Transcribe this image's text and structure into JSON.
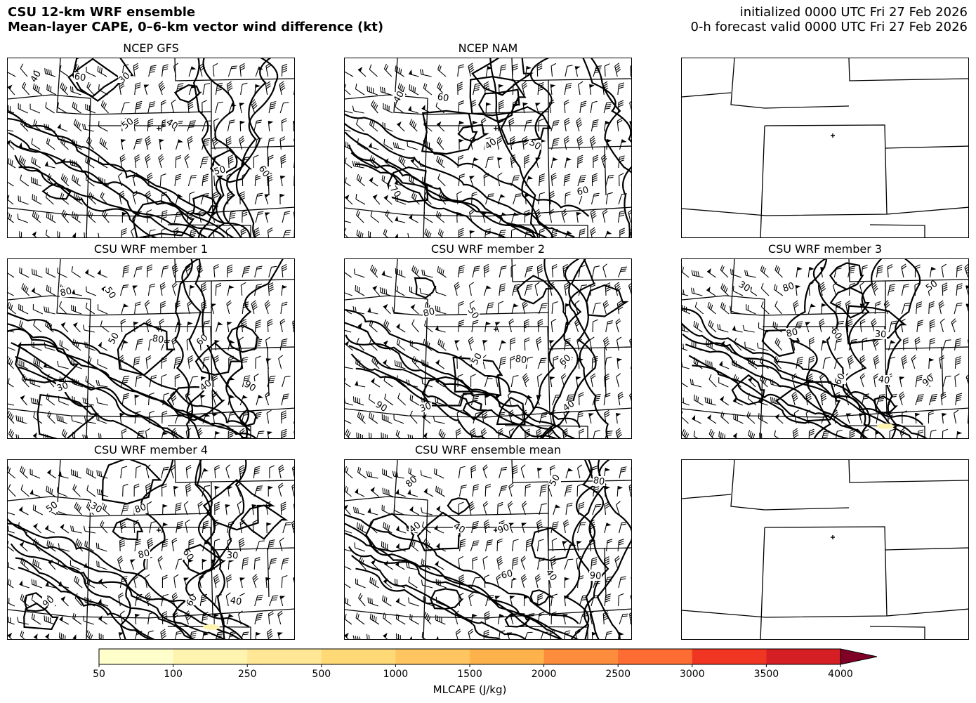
{
  "header": {
    "title_line1": "CSU 12-km WRF ensemble",
    "title_line2": "Mean-layer CAPE, 0–6-km vector wind difference (kt)",
    "init_line": "initialized 0000 UTC Fri 27 Feb 2026",
    "valid_line": "0-h forecast valid 0000 UTC Fri 27 Feb 2026"
  },
  "panels": [
    {
      "title": "NCEP GFS",
      "has_data": true,
      "contour_labels": [
        "40",
        "50",
        "50",
        "60",
        "40",
        "60",
        "30"
      ]
    },
    {
      "title": "NCEP NAM",
      "has_data": true,
      "contour_labels": [
        "40",
        "40",
        "60",
        "60",
        "50",
        "70"
      ]
    },
    {
      "title": "",
      "has_data": false,
      "contour_labels": []
    },
    {
      "title": "CSU WRF member 1",
      "has_data": true,
      "contour_labels": [
        "50",
        "40",
        "80",
        "80",
        "90",
        "50",
        "60",
        "30"
      ]
    },
    {
      "title": "CSU WRF member 2",
      "has_data": true,
      "contour_labels": [
        "50",
        "40",
        "80",
        "80",
        "90",
        "50",
        "60",
        "30"
      ]
    },
    {
      "title": "CSU WRF member 3",
      "has_data": true,
      "contour_labels": [
        "60",
        "50",
        "80",
        "40",
        "30",
        "60",
        "90",
        "80",
        "30"
      ]
    },
    {
      "title": "CSU WRF member 4",
      "has_data": true,
      "contour_labels": [
        "60",
        "50",
        "80",
        "40",
        "30",
        "60",
        "90",
        "80",
        "30"
      ]
    },
    {
      "title": "CSU WRF ensemble mean",
      "has_data": true,
      "contour_labels": [
        "50",
        "40",
        "60",
        "80",
        "40",
        "40",
        "80",
        "90",
        "90"
      ]
    },
    {
      "title": "",
      "has_data": false,
      "contour_labels": []
    }
  ],
  "colorbar": {
    "title": "MLCAPE (J/kg)",
    "levels": [
      "50",
      "100",
      "250",
      "500",
      "1000",
      "1500",
      "2000",
      "2500",
      "3000",
      "3500",
      "4000"
    ],
    "colors": [
      "#ffffcc",
      "#fff3b0",
      "#ffe795",
      "#fed976",
      "#fec560",
      "#feb24c",
      "#fd8d3c",
      "#fc6c33",
      "#f03523",
      "#d51f25",
      "#bd0026"
    ],
    "extend_color": "#800026"
  }
}
